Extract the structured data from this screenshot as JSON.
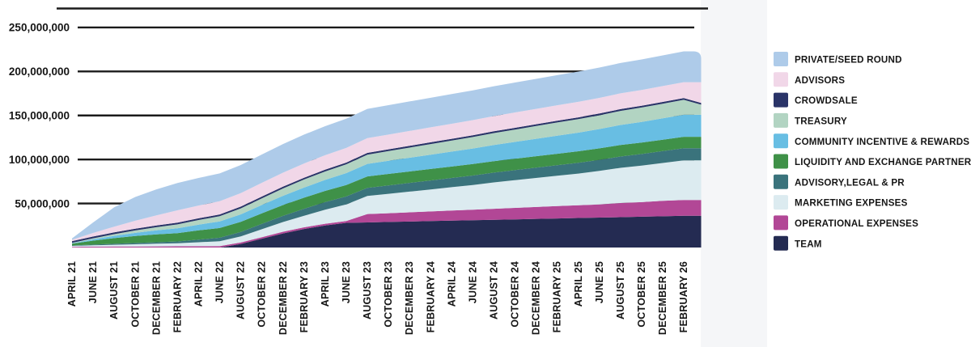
{
  "chart_data": {
    "type": "area",
    "stacked": true,
    "title": "",
    "xlabel": "",
    "ylabel": "",
    "unit": "tokens",
    "values_scale": 1000000,
    "values_unit": "millions",
    "grid": "horizontal-gridlines",
    "legend_position": "right",
    "ylim_millions": [
      0,
      260
    ],
    "y_ticks": [
      {
        "value_millions": 250,
        "label": "250,000,000"
      },
      {
        "value_millions": 200,
        "label": "200,000,000"
      },
      {
        "value_millions": 150,
        "label": "150,000,000"
      },
      {
        "value_millions": 100,
        "label": "100,000,000"
      },
      {
        "value_millions": 50,
        "label": "50,000,000"
      }
    ],
    "x_tick_labels": [
      "APRIL 21",
      "JUNE 21",
      "AUGUST 21",
      "OCTOBER 21",
      "DECEMBER 21",
      "FEBRUARY 22",
      "APRIL 22",
      "JUNE 22",
      "AUGUST 22",
      "OCTOBER 22",
      "DECEMBER 22",
      "FEBRUARY 23",
      "APRIL 23",
      "JUNE 23",
      "AUGUST 23",
      "OCTOBER 23",
      "DECEMBER 23",
      "FEBRUARY 24",
      "APRIL 24",
      "JUNE 24",
      "AUGUST 24",
      "OCTOBER 24",
      "DECEMBER 24",
      "FEBRUARY 25",
      "APRIL 25",
      "JUNE 25",
      "AUGUST 25",
      "OCTOBER 25",
      "DECEMBER 25",
      "FEBRUARY 26"
    ],
    "series_bottom_to_top": [
      {
        "name": "TEAM",
        "color": "#242B52",
        "values_millions": [
          0,
          0,
          0,
          0,
          0,
          0,
          0,
          0,
          4,
          10,
          16,
          21,
          25,
          28,
          28.5,
          29,
          29.5,
          30,
          30.5,
          31,
          31.5,
          32,
          32.5,
          33,
          33.5,
          34,
          34.5,
          35,
          35.5,
          36
        ]
      },
      {
        "name": "OPERATIONAL EXPENSES",
        "color": "#B24796",
        "values_millions": [
          0.8,
          1,
          1.1,
          1.2,
          1.3,
          1.4,
          1.5,
          1.6,
          1.7,
          1.8,
          1.9,
          2,
          2,
          2,
          9.5,
          10,
          10.5,
          11,
          11.5,
          12,
          12.5,
          13,
          13.5,
          14,
          14.5,
          15,
          16,
          16.5,
          17.5,
          18
        ]
      },
      {
        "name": "MARKETING EXPENSES",
        "color": "#DCEBF0",
        "values_millions": [
          1,
          1.5,
          2,
          2.5,
          3,
          3.5,
          4.5,
          5.5,
          7,
          9,
          11,
          13,
          16,
          19,
          20.5,
          22,
          23.5,
          25,
          26.5,
          28,
          30,
          31.5,
          33,
          34.5,
          36,
          38,
          40,
          41.5,
          43,
          45
        ]
      },
      {
        "name": "ADVISORY,LEGAL & PR",
        "color": "#3A737C",
        "values_millions": [
          0.5,
          0.8,
          1.1,
          1.4,
          1.7,
          2,
          3,
          4,
          5,
          6,
          7,
          8,
          8.5,
          9,
          9.3,
          9.6,
          9.9,
          10.2,
          10.5,
          10.8,
          11.1,
          11.4,
          11.7,
          12,
          12.3,
          12.6,
          12.9,
          13.2,
          13.5,
          13.8
        ]
      },
      {
        "name": "LIQUIDITY AND EXCHANGE PARTNERSHIP",
        "color": "#3F9148",
        "values_millions": [
          2,
          4.5,
          6.5,
          8,
          9,
          9.5,
          10.5,
          11,
          11.5,
          12,
          12.3,
          12.6,
          12.8,
          13,
          13,
          13,
          13,
          13,
          13,
          13,
          13,
          13,
          13,
          13,
          13,
          13,
          13,
          13,
          13,
          13
        ]
      },
      {
        "name": "COMMUNITY INCENTIVE & REWARDS",
        "color": "#68BEE3",
        "values_millions": [
          0.5,
          1.5,
          2.5,
          3.5,
          4.5,
          5.5,
          6.5,
          7.5,
          8.5,
          9.5,
          10.5,
          11.5,
          12.5,
          13.5,
          14.2,
          14.9,
          15.6,
          16.3,
          17,
          17.7,
          18.4,
          19.1,
          19.8,
          20.5,
          21.2,
          22,
          22.8,
          23.5,
          24.3,
          25
        ]
      },
      {
        "name": "TREASURY",
        "color": "#B2D4C2",
        "values_millions": [
          0.5,
          1.2,
          2,
          2.8,
          3.6,
          4.4,
          5.2,
          6,
          6.8,
          7.6,
          8.4,
          9.2,
          9.6,
          10,
          10.5,
          11,
          11.5,
          12,
          12.5,
          13,
          13.5,
          14,
          14.5,
          15,
          15.3,
          15.6,
          16,
          16.3,
          16.6,
          17
        ]
      },
      {
        "name": "CROWDSALE",
        "color": "#2A3468",
        "values_millions": [
          2,
          2,
          2,
          2,
          2,
          2,
          2,
          2,
          2,
          2,
          2,
          2,
          2,
          2,
          2,
          2,
          2,
          2,
          2,
          2,
          2,
          2,
          2,
          2,
          2,
          2,
          2,
          2,
          2,
          2
        ]
      },
      {
        "name": "ADVISORS",
        "color": "#F1D7E8",
        "values_millions": [
          1.5,
          4,
          6.5,
          9,
          11.5,
          14,
          14.5,
          15,
          15.3,
          15.6,
          15.9,
          16.2,
          16.4,
          16.6,
          16.7,
          16.8,
          16.9,
          17,
          17.1,
          17.2,
          17.3,
          17.4,
          17.5,
          17.6,
          17.7,
          17.8,
          17.9,
          18,
          18,
          18
        ]
      },
      {
        "name": "PRIVATE/SEED ROUND",
        "color": "#AECBE9",
        "values_millions": [
          1.5,
          12,
          22,
          27,
          29.5,
          31,
          31.3,
          31.6,
          31.9,
          32.2,
          32.5,
          32.8,
          33,
          33.2,
          33.3,
          33.4,
          33.5,
          33.6,
          33.7,
          33.8,
          33.9,
          34,
          34.1,
          34.2,
          34.3,
          34.4,
          34.5,
          34.6,
          34.8,
          35
        ]
      }
    ],
    "legend_top_to_bottom": [
      "PRIVATE/SEED ROUND",
      "ADVISORS",
      "CROWDSALE",
      "TREASURY",
      "COMMUNITY INCENTIVE & REWARDS",
      "LIQUIDITY AND EXCHANGE PARTNERSHIP",
      "ADVISORY,LEGAL & PR",
      "MARKETING EXPENSES",
      "OPERATIONAL EXPENSES",
      "TEAM"
    ]
  }
}
